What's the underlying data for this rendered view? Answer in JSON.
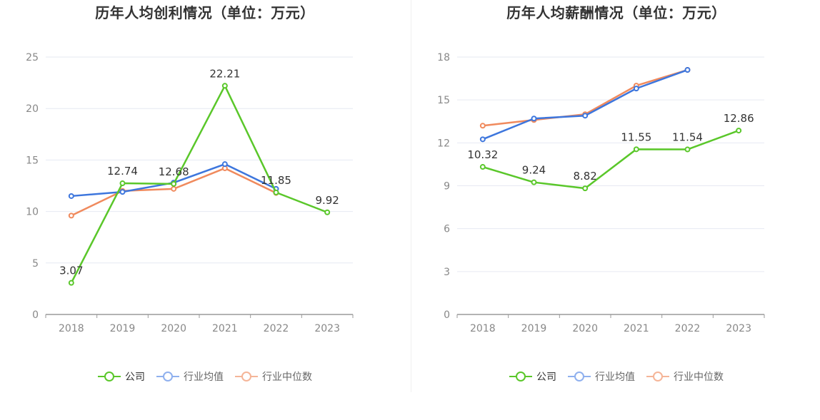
{
  "charts": [
    {
      "title": "历年人均创利情况（单位：万元）",
      "legend": [
        "公司",
        "行业均值",
        "行业中位数"
      ],
      "chart_data": {
        "type": "line",
        "categories": [
          "2018",
          "2019",
          "2020",
          "2021",
          "2022",
          "2023"
        ],
        "ylim": [
          0,
          25
        ],
        "yticks": [
          "0",
          "5",
          "10",
          "15",
          "20",
          "25"
        ],
        "grid": true,
        "legend_position": "bottom",
        "series": [
          {
            "name": "公司",
            "color": "#5ac72a",
            "values": [
              3.07,
              12.74,
              12.68,
              22.21,
              11.85,
              9.92
            ],
            "labels": [
              "3.07",
              "12.74",
              "12.68",
              "22.21",
              "11.85",
              "9.92"
            ]
          },
          {
            "name": "行业均值",
            "color": "#3d76dd",
            "values": [
              11.5,
              11.9,
              12.8,
              14.6,
              12.2,
              null
            ]
          },
          {
            "name": "行业中位数",
            "color": "#f08a5d",
            "values": [
              9.6,
              12.0,
              12.2,
              14.2,
              11.8,
              null
            ]
          }
        ]
      }
    },
    {
      "title": "历年人均薪酬情况（单位：万元）",
      "legend": [
        "公司",
        "行业均值",
        "行业中位数"
      ],
      "chart_data": {
        "type": "line",
        "categories": [
          "2018",
          "2019",
          "2020",
          "2021",
          "2022",
          "2023"
        ],
        "ylim": [
          0,
          18
        ],
        "yticks": [
          "0",
          "3",
          "6",
          "9",
          "12",
          "15",
          "18"
        ],
        "grid": true,
        "legend_position": "bottom",
        "series": [
          {
            "name": "公司",
            "color": "#5ac72a",
            "values": [
              10.32,
              9.24,
              8.82,
              11.55,
              11.54,
              12.86
            ],
            "labels": [
              "10.32",
              "9.24",
              "8.82",
              "11.55",
              "11.54",
              "12.86"
            ]
          },
          {
            "name": "行业均值",
            "color": "#3d76dd",
            "values": [
              12.25,
              13.7,
              13.9,
              15.8,
              17.1,
              null
            ]
          },
          {
            "name": "行业中位数",
            "color": "#f08a5d",
            "values": [
              13.2,
              13.6,
              14.0,
              16.0,
              17.1,
              null
            ]
          }
        ]
      }
    }
  ],
  "legend_colors": [
    "#5ac72a",
    "#8fb0ee",
    "#f5b598"
  ]
}
